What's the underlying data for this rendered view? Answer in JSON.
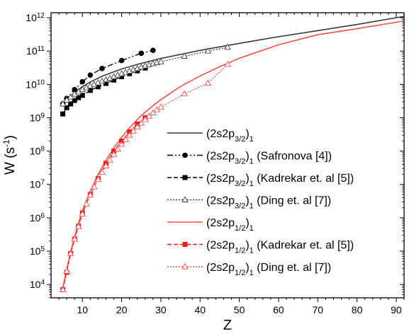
{
  "chart_data": {
    "type": "line",
    "xlabel": "Z",
    "ylabel": "W (s",
    "ylabel_sup": "-1",
    "ylabel_tail": ")",
    "xlim": [
      2,
      92
    ],
    "ylim_log10": [
      3.6,
      12.15
    ],
    "log_y": true,
    "x_ticks": [
      "10",
      "20",
      "30",
      "40",
      "50",
      "60",
      "70",
      "80",
      "90"
    ],
    "y_ticks": [
      {
        "base": "10",
        "exp": "4"
      },
      {
        "base": "10",
        "exp": "5"
      },
      {
        "base": "10",
        "exp": "6"
      },
      {
        "base": "10",
        "exp": "7"
      },
      {
        "base": "10",
        "exp": "8"
      },
      {
        "base": "10",
        "exp": "9"
      },
      {
        "base": "10",
        "exp": "10"
      },
      {
        "base": "10",
        "exp": "11"
      },
      {
        "base": "10",
        "exp": "12"
      }
    ],
    "legend_position": "right-center",
    "series": [
      {
        "state": {
          "core": "(2s2p",
          "sub": "3/2",
          "tail": ")",
          "j": "1"
        },
        "ref": "",
        "color": "#3a3a3a",
        "dash": "none",
        "marker": "none",
        "x": [
          5,
          6,
          8,
          10,
          12,
          15,
          20,
          25,
          30,
          40,
          50,
          60,
          70,
          80,
          92
        ],
        "y": [
          2300000000.0,
          3300000000.0,
          5700000000.0,
          8600000000.0,
          11800000000.0,
          17600000000.0,
          29000000000.0,
          43000000000.0,
          60000000000.0,
          105000000000.0,
          170000000000.0,
          270000000000.0,
          410000000000.0,
          630000000000.0,
          1100000000000.0
        ]
      },
      {
        "state": {
          "core": "(2s2p",
          "sub": "3/2",
          "tail": ")",
          "j": "1"
        },
        "ref": "(Safronova [4])",
        "color": "#000000",
        "dash": "8,3,2,3,2,3",
        "marker": "circle",
        "x": [
          5,
          6,
          8,
          10,
          12,
          15,
          20,
          25,
          28
        ],
        "y": [
          2600000000.0,
          3800000000.0,
          7000000000.0,
          12000000000.0,
          19000000000.0,
          30000000000.0,
          52000000000.0,
          86000000000.0,
          105000000000.0
        ]
      },
      {
        "state": {
          "core": "(2s2p",
          "sub": "3/2",
          "tail": ")",
          "j": "1"
        },
        "ref": "(Kadrekar et. al [5])",
        "color": "#000000",
        "dash": "6,3",
        "marker": "square",
        "x": [
          5,
          6,
          7,
          8,
          9,
          10,
          12,
          14,
          16,
          18,
          20,
          22,
          24,
          26
        ],
        "y": [
          1300000000.0,
          2000000000.0,
          2600000000.0,
          3300000000.0,
          4000000000.0,
          4700000000.0,
          6600000000.0,
          8500000000.0,
          10700000000.0,
          13500000000.0,
          17000000000.0,
          21000000000.0,
          25500000000.0,
          31000000000.0
        ]
      },
      {
        "state": {
          "core": "(2s2p",
          "sub": "3/2",
          "tail": ")",
          "j": "1"
        },
        "ref": "(Ding et. al [7])",
        "color": "#444444",
        "dash": "2,2",
        "marker": "triangle-open",
        "x": [
          5,
          6,
          7,
          8,
          9,
          10,
          11,
          12,
          13,
          14,
          15,
          16,
          17,
          18,
          19,
          20,
          21,
          22,
          23,
          24,
          25,
          26,
          27,
          28,
          29,
          30,
          36,
          42,
          47
        ],
        "y": [
          2600000000.0,
          3400000000.0,
          4200000000.0,
          5100000000.0,
          6000000000.0,
          7000000000.0,
          8000000000.0,
          9000000000.0,
          10000000000.0,
          11200000000.0,
          12500000000.0,
          13800000000.0,
          15300000000.0,
          17000000000.0,
          19000000000.0,
          21000000000.0,
          23000000000.0,
          25000000000.0,
          27500000000.0,
          30000000000.0,
          33000000000.0,
          36000000000.0,
          39000000000.0,
          42000000000.0,
          45000000000.0,
          48000000000.0,
          70000000000.0,
          100000000000.0,
          130000000000.0
        ]
      },
      {
        "state": {
          "core": "(2s2p",
          "sub": "1/2",
          "tail": ")",
          "j": "1"
        },
        "ref": "",
        "color": "#ff4d4d",
        "dash": "none",
        "marker": "none",
        "x": [
          5,
          6,
          7,
          8,
          9,
          10,
          11,
          12,
          14,
          16,
          18,
          20,
          22,
          25,
          28,
          30,
          35,
          40,
          45,
          50,
          60,
          70,
          80,
          92
        ],
        "y": [
          8000.0,
          29000.0,
          96000.0,
          270000.0,
          690000.0,
          1600000.0,
          3300000.0,
          6300000.0,
          20000000.0,
          53000000.0,
          124000000.0,
          260000000.0,
          500000000.0,
          1170000000.0,
          2300000000.0,
          3500000000.0,
          8700000000.0,
          18000000000.0,
          34000000000.0,
          61000000000.0,
          155000000000.0,
          310000000000.0,
          470000000000.0,
          800000000000.0
        ]
      },
      {
        "state": {
          "core": "(2s2p",
          "sub": "1/2",
          "tail": ")",
          "j": "1"
        },
        "ref": "(Kadrekar et. al [5])",
        "color": "#ff1a1a",
        "dash": "6,3",
        "marker": "square",
        "x": [
          5,
          6,
          7,
          8,
          9,
          10,
          12,
          14,
          16,
          18,
          20,
          22,
          24,
          26
        ],
        "y": [
          7000.0,
          23000.0,
          85000.0,
          230000.0,
          560000.0,
          1400000.0,
          5000000.0,
          15000000.0,
          43000000.0,
          100000000.0,
          200000000.0,
          380000000.0,
          650000000.0,
          1000000000.0
        ]
      },
      {
        "state": {
          "core": "(2s2p",
          "sub": "1/2",
          "tail": ")",
          "j": "1"
        },
        "ref": "(Ding et. al [7])",
        "color": "#ff4d4d",
        "dash": "2,2",
        "marker": "triangle-open",
        "x": [
          5,
          6,
          7,
          8,
          9,
          10,
          11,
          12,
          13,
          14,
          15,
          16,
          17,
          18,
          19,
          20,
          21,
          22,
          23,
          24,
          25,
          26,
          27,
          28,
          29,
          30,
          36,
          42,
          47
        ],
        "y": [
          7000.0,
          25000.0,
          85000.0,
          230000.0,
          550000.0,
          1300000.0,
          2600000.0,
          4800000.0,
          8500000.0,
          14000000.0,
          23000000.0,
          36000000.0,
          54000000.0,
          80000000.0,
          115000000.0,
          160000000.0,
          220000000.0,
          300000000.0,
          400000000.0,
          530000000.0,
          690000000.0,
          880000000.0,
          1120000000.0,
          1400000000.0,
          1750000000.0,
          2100000000.0,
          5200000000.0,
          11000000000.0,
          40000000000.0
        ]
      }
    ]
  }
}
